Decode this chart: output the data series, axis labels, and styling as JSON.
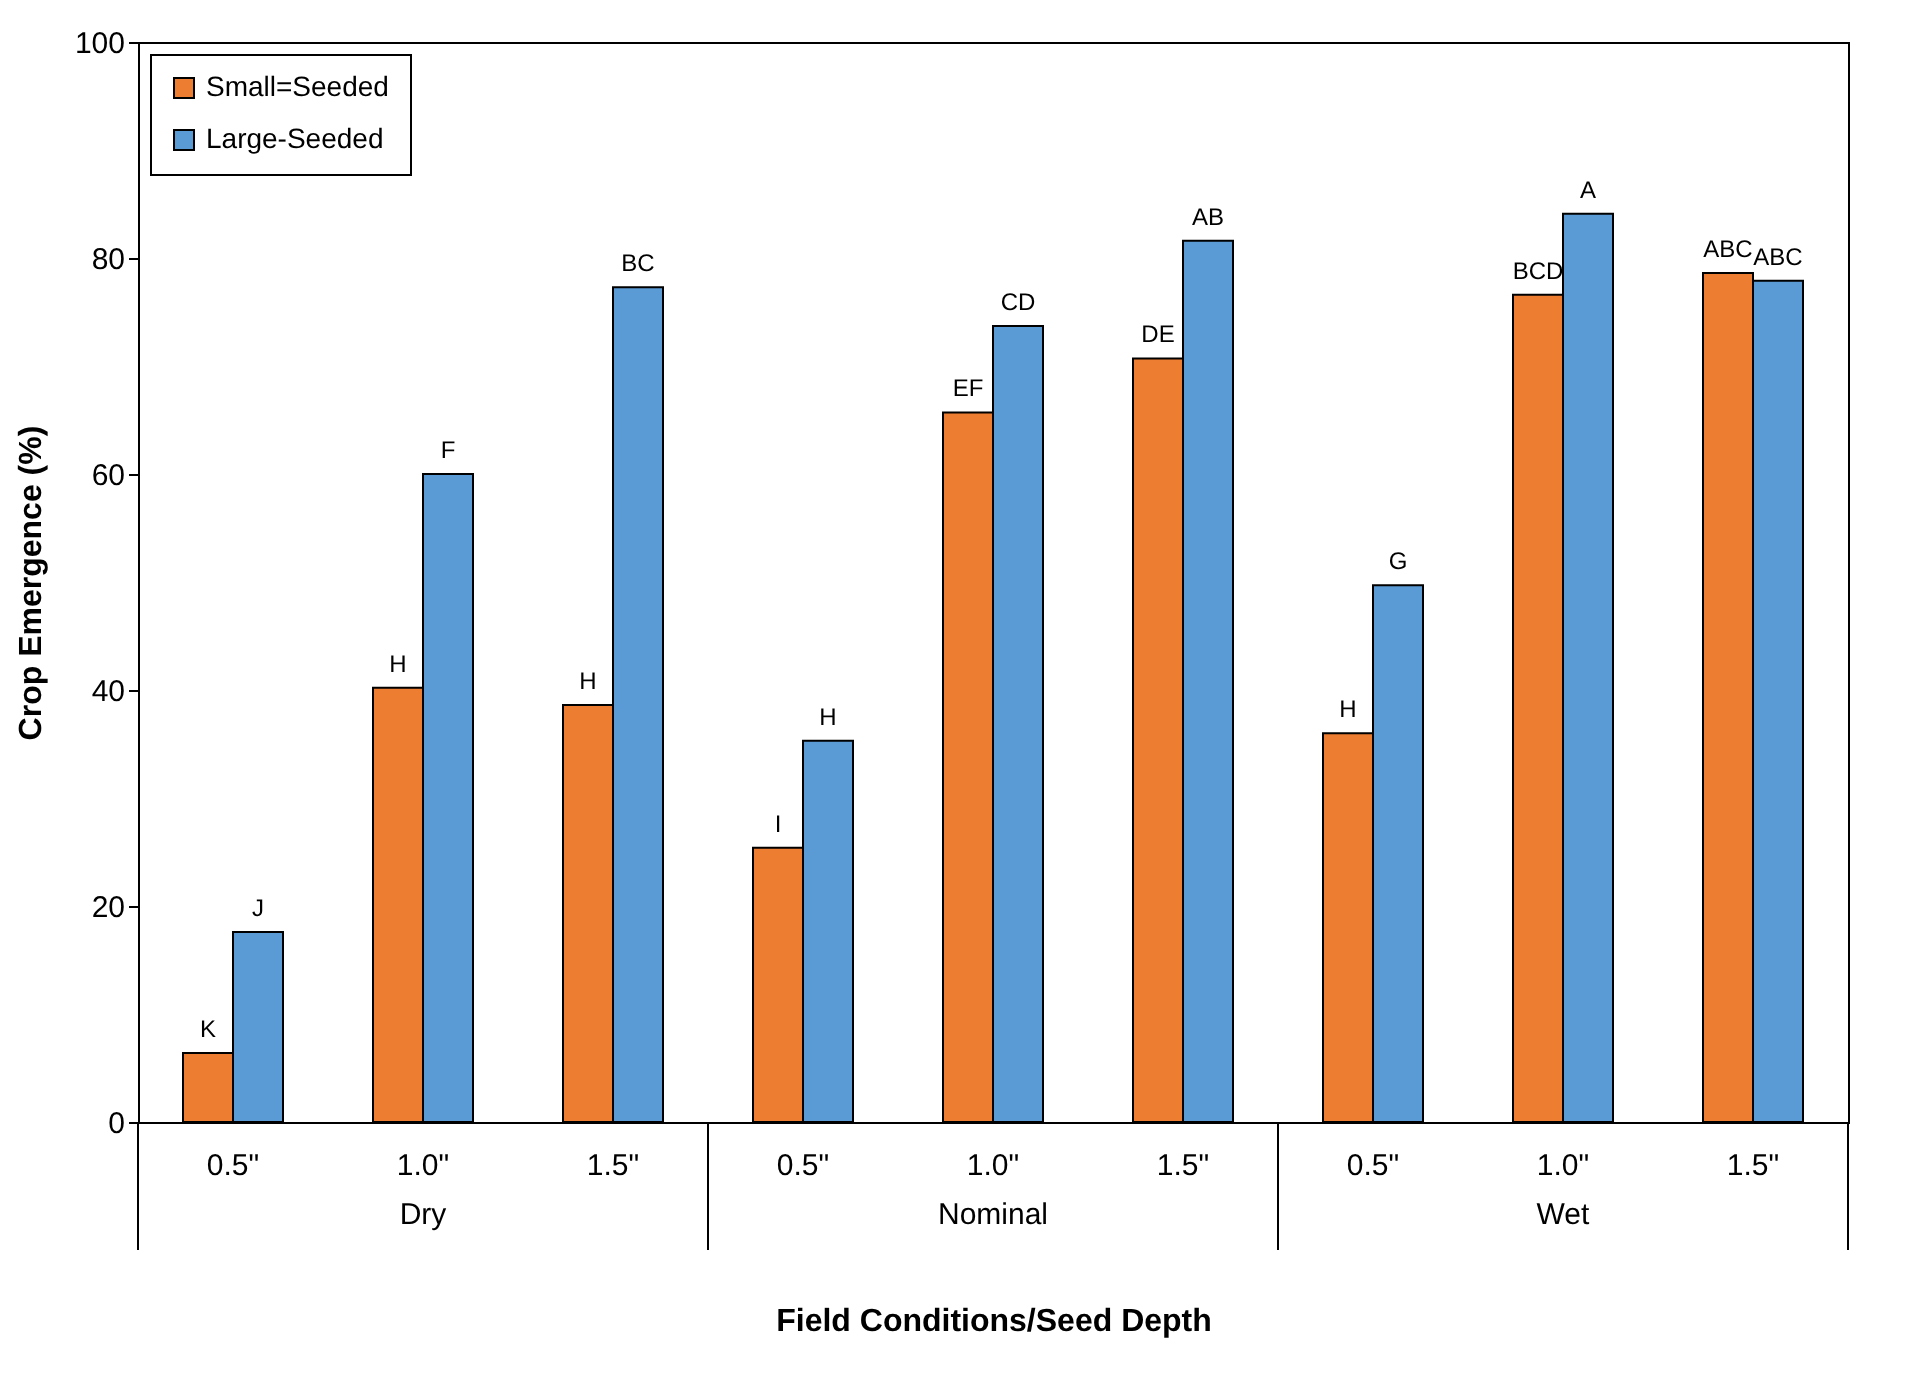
{
  "chart_data": {
    "type": "bar",
    "xlabel": "Field Conditions/Seed Depth",
    "ylabel": "Crop Emergence (%)",
    "categories": [
      "0.5\"",
      "1.0\"",
      "1.5\"",
      "0.5\"",
      "1.0\"",
      "1.5\"",
      "0.5\"",
      "1.0\"",
      "1.5\""
    ],
    "series": [
      {
        "name": "Small=Seeded",
        "color": "#ed7d31",
        "values": [
          6.4,
          40.2,
          38.6,
          25.4,
          65.7,
          70.7,
          36.0,
          76.6,
          78.6
        ],
        "value_labels": [
          "K",
          "H",
          "H",
          "I",
          "EF",
          "DE",
          "H",
          "BCD",
          "ABC"
        ]
      },
      {
        "name": "Large-Seeded",
        "color": "#5b9bd5",
        "values": [
          17.6,
          60.0,
          77.3,
          35.3,
          73.7,
          81.6,
          49.7,
          84.1,
          77.9
        ],
        "value_labels": [
          "J",
          "F",
          "BC",
          "H",
          "CD",
          "AB",
          "G",
          "A",
          "ABC"
        ]
      }
    ],
    "annotations": [
      "Dry",
      "Nominal",
      "Wet"
    ],
    "ylim": [
      0,
      100
    ],
    "yticks": [
      0,
      20,
      40,
      60,
      80,
      100
    ],
    "grid": false,
    "legend": "top left"
  }
}
